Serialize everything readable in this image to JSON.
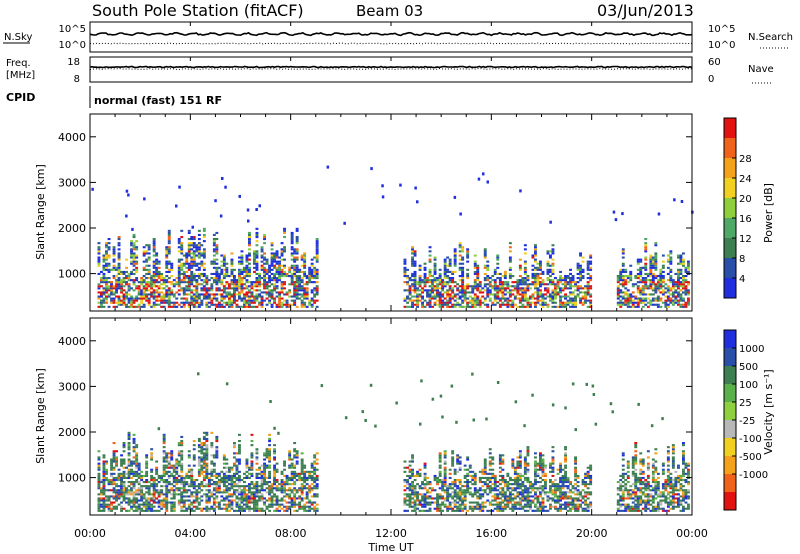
{
  "header": {
    "station": "South Pole Station (fitACF)",
    "beam": "Beam 03",
    "date": "03/Jun/2013"
  },
  "panel_nsky": {
    "left_label": "N.Sky",
    "left_ticks": [
      "10^5",
      "10^0"
    ],
    "right_label": "N.Search",
    "right_ticks": [
      "10^5",
      "10^0"
    ]
  },
  "panel_freq": {
    "left_label_1": "Freq.",
    "left_label_2": "[MHz]",
    "left_ticks": [
      "18",
      "8"
    ],
    "right_label": "Nave",
    "right_ticks": [
      "60",
      "0"
    ]
  },
  "cpid": {
    "label": "CPID",
    "value": "normal (fast) 151 RF"
  },
  "x_axis": {
    "label": "Time UT",
    "ticks": [
      "00:00",
      "04:00",
      "08:00",
      "12:00",
      "16:00",
      "20:00",
      "00:00"
    ]
  },
  "chart_data": [
    {
      "type": "heatmap",
      "title": "",
      "xlabel": "Time UT",
      "ylabel": "Slant Range [km]",
      "x_range_hours": [
        0,
        24
      ],
      "ylim": [
        180,
        4500
      ],
      "y_ticks": [
        1000,
        2000,
        3000,
        4000
      ],
      "colorbar": {
        "label": "Power [dB]",
        "ticks": [
          "4",
          "8",
          "12",
          "16",
          "20",
          "24",
          "28"
        ],
        "colors": [
          "#1f2fe0",
          "#2a4fa8",
          "#3e7f52",
          "#4fa866",
          "#8fcf3e",
          "#f0d020",
          "#f4a21c",
          "#f0631a",
          "#e31212"
        ]
      },
      "regions": [
        {
          "t0": 0.3,
          "t1": 9.0,
          "r0": 250,
          "r1": 2000,
          "level": "mixed"
        },
        {
          "t0": 12.5,
          "t1": 20.0,
          "r0": 250,
          "r1": 1700,
          "level": "mixed"
        },
        {
          "t0": 21.0,
          "t1": 23.9,
          "r0": 250,
          "r1": 1800,
          "level": "mixed"
        }
      ]
    },
    {
      "type": "heatmap",
      "title": "",
      "xlabel": "Time UT",
      "ylabel": "Slant Range [km]",
      "x_range_hours": [
        0,
        24
      ],
      "ylim": [
        180,
        4500
      ],
      "y_ticks": [
        1000,
        2000,
        3000,
        4000
      ],
      "colorbar": {
        "label": "Velocity [m s⁻¹]",
        "ticks": [
          "1000",
          "500",
          "100",
          "25",
          "-25",
          "-100",
          "-500",
          "-1000"
        ],
        "colors": [
          "#1f2fe0",
          "#2a4fa8",
          "#3e7f52",
          "#5ab04a",
          "#8fd040",
          "#b8b8b8",
          "#f0d020",
          "#f4a21c",
          "#f0631a",
          "#e31212"
        ]
      },
      "regions": [
        {
          "t0": 0.3,
          "t1": 9.0,
          "r0": 250,
          "r1": 2000,
          "level": "mixed"
        },
        {
          "t0": 12.5,
          "t1": 20.0,
          "r0": 250,
          "r1": 1700,
          "level": "mixed"
        },
        {
          "t0": 21.0,
          "t1": 23.9,
          "r0": 250,
          "r1": 1800,
          "level": "mixed"
        }
      ]
    }
  ]
}
